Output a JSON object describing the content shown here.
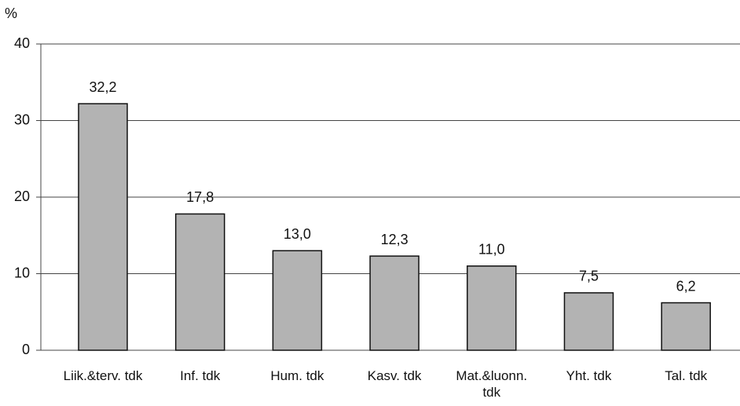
{
  "chart_data": {
    "type": "bar",
    "y_label": "%",
    "categories": [
      "Liik.&terv. tdk",
      "Inf. tdk",
      "Hum. tdk",
      "Kasv. tdk",
      "Mat.&luonn. tdk",
      "Yht. tdk",
      "Tal. tdk"
    ],
    "values": [
      32.2,
      17.8,
      13.0,
      12.3,
      11.0,
      7.5,
      6.2
    ],
    "value_labels": [
      "32,2",
      "17,8",
      "13,0",
      "12,3",
      "11,0",
      "7,5",
      "6,2"
    ],
    "color": "#b3b3b3",
    "ylim": [
      0,
      40
    ],
    "yticks": [
      0,
      10,
      20,
      30,
      40
    ],
    "grid": true
  }
}
